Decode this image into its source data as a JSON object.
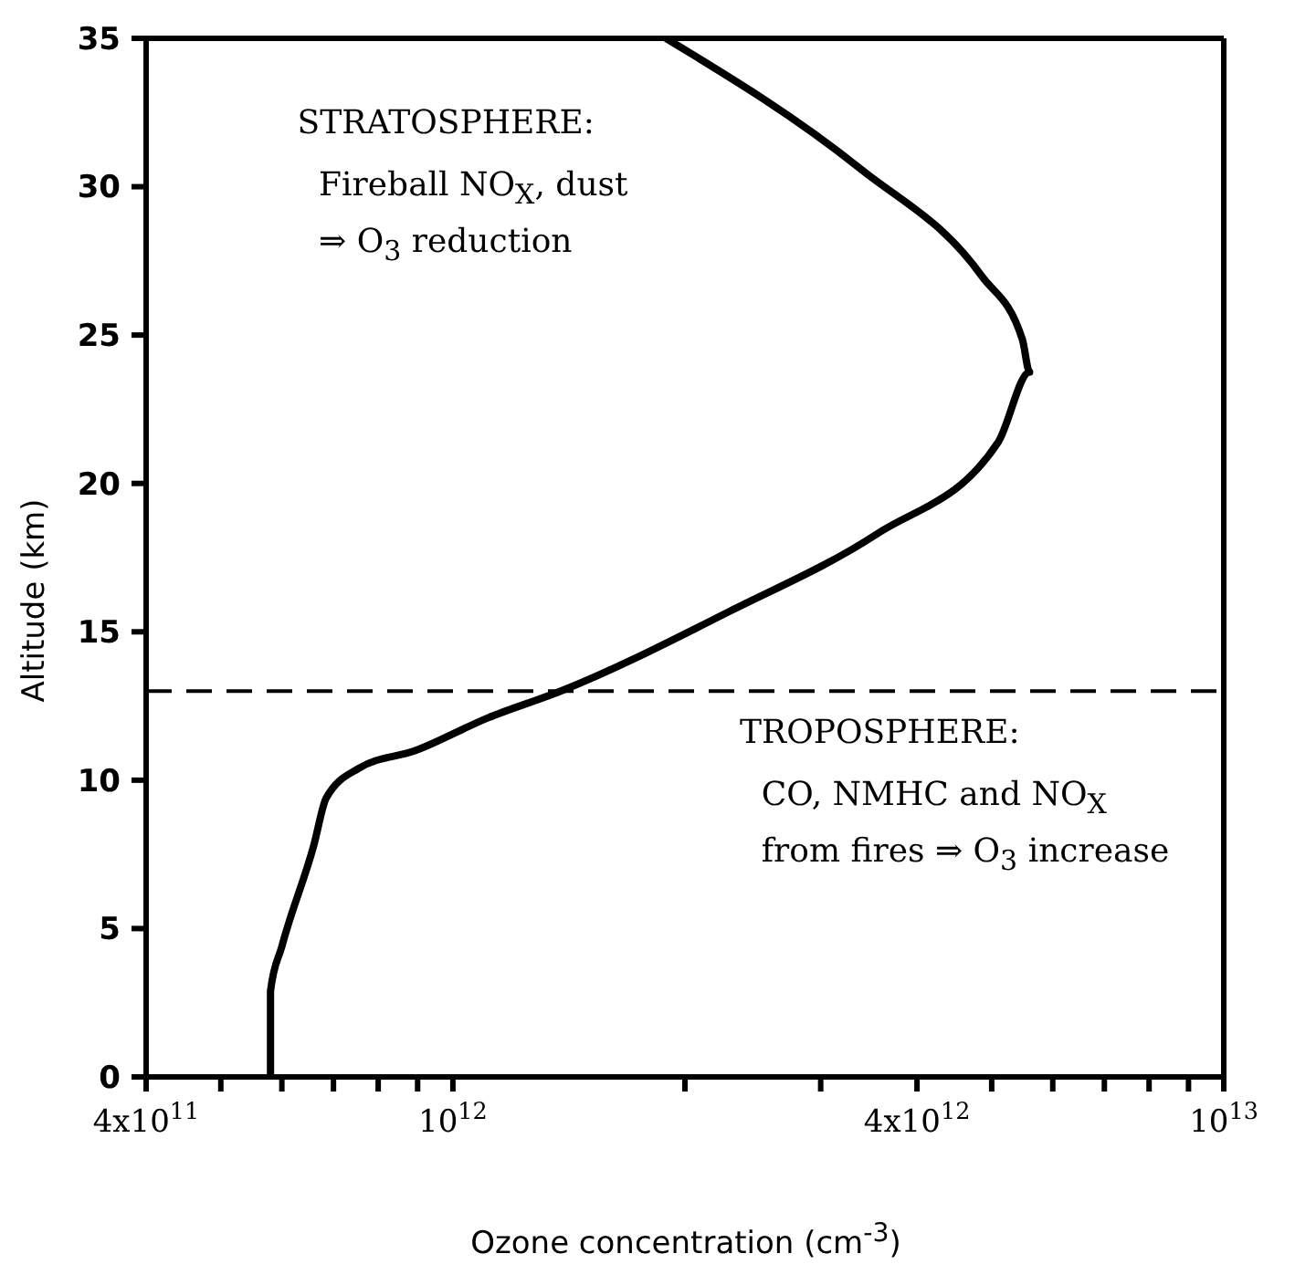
{
  "chart_data": {
    "type": "line",
    "xlabel": "Ozone concentration (cm$^{-3}$)",
    "ylabel": "Altitude (km)",
    "log": "x",
    "xlim": [
      400000000000,
      10000000000000
    ],
    "xticks": [
      {
        "value": 400000000000,
        "label": "4x10$^{11}$"
      },
      {
        "value": 500000000000,
        "label": null
      },
      {
        "value": 600000000000,
        "label": null
      },
      {
        "value": 700000000000,
        "label": null
      },
      {
        "value": 800000000000,
        "label": null
      },
      {
        "value": 900000000000,
        "label": null
      },
      {
        "value": 1000000000000,
        "label": "10$^{12}$"
      },
      {
        "value": 2000000000000,
        "label": null
      },
      {
        "value": 3000000000000,
        "label": null
      },
      {
        "value": 4000000000000,
        "label": "4x10$^{12}$"
      },
      {
        "value": 5000000000000,
        "label": null
      },
      {
        "value": 6000000000000,
        "label": null
      },
      {
        "value": 7000000000000,
        "label": null
      },
      {
        "value": 8000000000000,
        "label": null
      },
      {
        "value": 9000000000000,
        "label": null
      },
      {
        "value": 10000000000000,
        "label": "10$^{13}$"
      }
    ],
    "ylim": [
      0,
      35
    ],
    "yticks": [
      0,
      5,
      10,
      15,
      20,
      25,
      30,
      35
    ],
    "grid": false,
    "marker": "none",
    "line_style": "solid",
    "series": [
      {
        "color": "#000000",
        "x": [
          580000000000,
          580000000000,
          600000000000,
          660000000000,
          685000000000,
          755000000000,
          895000000000,
          1110000000000,
          1380000000000,
          2290000000000,
          3550000000000,
          5100000000000,
          5600000000000,
          5480000000000,
          4850000000000,
          3380000000000,
          1890000000000
        ],
        "values": [
          0,
          2.9,
          4.4,
          7.8,
          9.4,
          10.4,
          11,
          12.1,
          13,
          15.7,
          18.3,
          21.4,
          23.75,
          24.85,
          27,
          30.6,
          35
        ]
      }
    ],
    "ref_lines": [
      {
        "axis": "y",
        "value": 13,
        "line_style": "dashed",
        "color": "#000000"
      }
    ],
    "annotations": [
      "STRATOSPHERE:",
      "Fireball NO$_{X}$, dust",
      "⇒ O$_{3}$ reduction",
      "TROPOSPHERE:",
      "CO, NMHC and NO$_{X}$",
      "from fires ⇒ O$_{3}$ increase"
    ]
  }
}
